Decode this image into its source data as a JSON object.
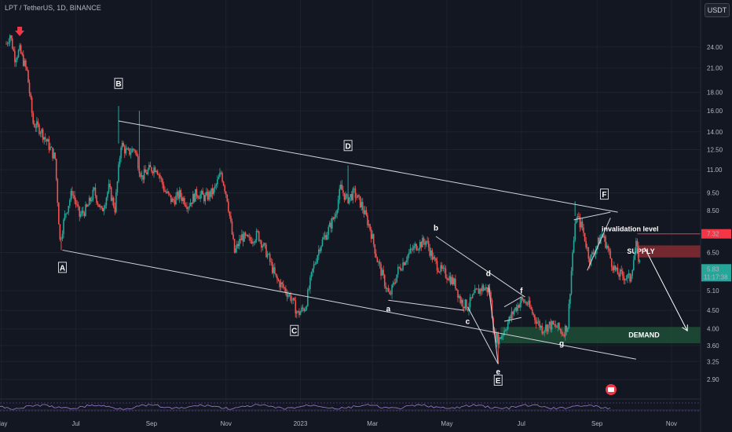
{
  "header": {
    "symbol": "LPT / TetherUS, 1D, BINANCE",
    "currency": "USDT"
  },
  "chart_data": {
    "type": "candlestick",
    "symbol": "LPT / TetherUS",
    "interval": "1D",
    "exchange": "BINANCE",
    "y_axis_scale": "log",
    "ylim": [
      2.6,
      29
    ],
    "xlim": [
      "2022-05-05",
      "2023-11-30"
    ],
    "y_ticks": [
      "24.00",
      "21.00",
      "18.00",
      "16.00",
      "14.00",
      "12.50",
      "11.00",
      "9.50",
      "8.50",
      "6.50",
      "5.10",
      "4.50",
      "4.00",
      "3.60",
      "3.25",
      "2.90"
    ],
    "x_ticks": [
      {
        "label": "May",
        "date": "2022-05-01"
      },
      {
        "label": "Jul",
        "date": "2022-07-01"
      },
      {
        "label": "Sep",
        "date": "2022-09-01"
      },
      {
        "label": "Nov",
        "date": "2022-11-01"
      },
      {
        "label": "2023",
        "date": "2023-01-01"
      },
      {
        "label": "Mar",
        "date": "2023-03-01"
      },
      {
        "label": "May",
        "date": "2023-05-01"
      },
      {
        "label": "Jul",
        "date": "2023-07-01"
      },
      {
        "label": "Sep",
        "date": "2023-09-01"
      },
      {
        "label": "Nov",
        "date": "2023-11-01"
      }
    ],
    "price_path": [
      [
        "2022-05-05",
        24.5
      ],
      [
        "2022-05-08",
        26.0
      ],
      [
        "2022-05-12",
        22.5
      ],
      [
        "2022-05-16",
        23.5
      ],
      [
        "2022-05-22",
        20.5
      ],
      [
        "2022-05-27",
        14.8
      ],
      [
        "2022-06-02",
        14.2
      ],
      [
        "2022-06-08",
        13.0
      ],
      [
        "2022-06-14",
        11.8
      ],
      [
        "2022-06-18",
        7.0
      ],
      [
        "2022-06-22",
        8.2
      ],
      [
        "2022-06-28",
        9.6
      ],
      [
        "2022-07-04",
        8.2
      ],
      [
        "2022-07-10",
        8.6
      ],
      [
        "2022-07-16",
        9.6
      ],
      [
        "2022-07-22",
        8.4
      ],
      [
        "2022-07-28",
        9.8
      ],
      [
        "2022-08-02",
        8.6
      ],
      [
        "2022-08-07",
        13.0
      ],
      [
        "2022-08-12",
        12.2
      ],
      [
        "2022-08-18",
        12.6
      ],
      [
        "2022-08-24",
        10.5
      ],
      [
        "2022-08-30",
        11.0
      ],
      [
        "2022-09-05",
        11.2
      ],
      [
        "2022-09-12",
        9.6
      ],
      [
        "2022-09-18",
        9.0
      ],
      [
        "2022-09-24",
        9.4
      ],
      [
        "2022-10-01",
        8.8
      ],
      [
        "2022-10-08",
        9.5
      ],
      [
        "2022-10-15",
        9.2
      ],
      [
        "2022-10-22",
        9.6
      ],
      [
        "2022-10-28",
        10.8
      ],
      [
        "2022-11-02",
        9.2
      ],
      [
        "2022-11-08",
        6.5
      ],
      [
        "2022-11-14",
        7.2
      ],
      [
        "2022-11-20",
        7.0
      ],
      [
        "2022-11-27",
        7.3
      ],
      [
        "2022-12-05",
        6.4
      ],
      [
        "2022-12-12",
        5.5
      ],
      [
        "2022-12-18",
        5.2
      ],
      [
        "2022-12-24",
        4.9
      ],
      [
        "2022-12-30",
        4.4
      ],
      [
        "2023-01-05",
        4.6
      ],
      [
        "2023-01-11",
        5.8
      ],
      [
        "2023-01-17",
        6.8
      ],
      [
        "2023-01-23",
        7.4
      ],
      [
        "2023-01-29",
        8.2
      ],
      [
        "2023-02-03",
        9.8
      ],
      [
        "2023-02-08",
        9.1
      ],
      [
        "2023-02-14",
        9.5
      ],
      [
        "2023-02-20",
        8.8
      ],
      [
        "2023-02-27",
        7.6
      ],
      [
        "2023-03-05",
        6.2
      ],
      [
        "2023-03-10",
        5.5
      ],
      [
        "2023-03-15",
        4.9
      ],
      [
        "2023-03-22",
        5.8
      ],
      [
        "2023-03-30",
        6.4
      ],
      [
        "2023-04-06",
        6.8
      ],
      [
        "2023-04-14",
        7.0
      ],
      [
        "2023-04-20",
        6.2
      ],
      [
        "2023-04-26",
        5.8
      ],
      [
        "2023-05-02",
        5.6
      ],
      [
        "2023-05-08",
        5.3
      ],
      [
        "2023-05-12",
        4.8
      ],
      [
        "2023-05-18",
        4.6
      ],
      [
        "2023-05-24",
        5.0
      ],
      [
        "2023-05-30",
        5.2
      ],
      [
        "2023-06-05",
        5.1
      ],
      [
        "2023-06-09",
        3.8
      ],
      [
        "2023-06-13",
        3.75
      ],
      [
        "2023-06-19",
        4.1
      ],
      [
        "2023-06-25",
        4.5
      ],
      [
        "2023-07-01",
        4.8
      ],
      [
        "2023-07-06",
        4.7
      ],
      [
        "2023-07-12",
        4.3
      ],
      [
        "2023-07-18",
        4.0
      ],
      [
        "2023-07-24",
        4.1
      ],
      [
        "2023-07-30",
        4.05
      ],
      [
        "2023-08-04",
        3.9
      ],
      [
        "2023-08-08",
        4.1
      ],
      [
        "2023-08-12",
        6.5
      ],
      [
        "2023-08-15",
        8.2
      ],
      [
        "2023-08-20",
        7.6
      ],
      [
        "2023-08-26",
        6.2
      ],
      [
        "2023-09-01",
        6.8
      ],
      [
        "2023-09-05",
        7.3
      ],
      [
        "2023-09-09",
        6.8
      ],
      [
        "2023-09-13",
        6.1
      ],
      [
        "2023-09-17",
        5.7
      ],
      [
        "2023-09-23",
        5.6
      ],
      [
        "2023-09-28",
        5.5
      ],
      [
        "2023-10-03",
        6.8
      ],
      [
        "2023-10-07",
        5.83
      ]
    ],
    "wicks": [
      [
        "2022-08-05",
        16.5
      ],
      [
        "2022-08-22",
        16.0
      ],
      [
        "2023-02-09",
        11.3
      ],
      [
        "2023-06-12",
        3.2
      ],
      [
        "2023-08-14",
        9.0
      ],
      [
        "2022-06-19",
        6.6
      ],
      [
        "2022-12-28",
        4.3
      ]
    ],
    "trendlines": [
      {
        "from": [
          "2022-08-05",
          15.0
        ],
        "to": [
          "2023-09-18",
          8.4
        ]
      },
      {
        "from": [
          "2022-06-20",
          6.6
        ],
        "to": [
          "2023-10-03",
          3.3
        ]
      },
      {
        "from": [
          "2023-03-14",
          4.8
        ],
        "to": [
          "2023-05-15",
          4.5
        ]
      },
      {
        "from": [
          "2023-04-22",
          7.2
        ],
        "to": [
          "2023-07-04",
          4.9
        ]
      },
      {
        "from": [
          "2023-06-04",
          5.3
        ],
        "to": [
          "2023-06-12",
          3.2
        ]
      },
      {
        "from": [
          "2023-05-18",
          4.6
        ],
        "to": [
          "2023-06-12",
          3.2
        ]
      },
      {
        "from": [
          "2023-06-17",
          4.6
        ],
        "to": [
          "2023-07-01",
          4.9
        ]
      },
      {
        "from": [
          "2023-06-17",
          4.2
        ],
        "to": [
          "2023-07-01",
          4.3
        ]
      },
      {
        "from": [
          "2023-08-13",
          8.0
        ],
        "to": [
          "2023-09-12",
          8.4
        ]
      },
      {
        "from": [
          "2023-08-24",
          5.8
        ],
        "to": [
          "2023-09-12",
          8.1
        ]
      }
    ],
    "wave_labels": [
      {
        "text": "A",
        "date": "2022-06-20",
        "price": 5.9,
        "boxed": true
      },
      {
        "text": "B",
        "date": "2022-08-05",
        "price": 19.0,
        "boxed": true
      },
      {
        "text": "C",
        "date": "2022-12-27",
        "price": 3.95,
        "boxed": true
      },
      {
        "text": "D",
        "date": "2023-02-09",
        "price": 12.8,
        "boxed": true
      },
      {
        "text": "E",
        "date": "2023-06-12",
        "price": 2.88,
        "boxed": true
      },
      {
        "text": "F",
        "date": "2023-09-07",
        "price": 9.4,
        "boxed": true
      },
      {
        "text": "a",
        "date": "2023-03-14",
        "price": 4.55,
        "boxed": false
      },
      {
        "text": "b",
        "date": "2023-04-22",
        "price": 7.6,
        "boxed": false
      },
      {
        "text": "c",
        "date": "2023-05-18",
        "price": 4.2,
        "boxed": false
      },
      {
        "text": "d",
        "date": "2023-06-04",
        "price": 5.7,
        "boxed": false
      },
      {
        "text": "e",
        "date": "2023-06-12",
        "price": 3.05,
        "boxed": false
      },
      {
        "text": "f",
        "date": "2023-07-01",
        "price": 5.1,
        "boxed": false
      },
      {
        "text": "g",
        "date": "2023-08-03",
        "price": 3.65,
        "boxed": false
      }
    ],
    "invalidation": {
      "label": "invalidation level",
      "price": 7.32,
      "price_label": "7.32"
    },
    "supply_zone": {
      "label": "SUPPLY",
      "from_date": "2023-10-04",
      "top": 6.8,
      "bottom": 6.3
    },
    "demand_zone": {
      "label": "DEMAND",
      "from_date": "2023-06-14",
      "top": 4.05,
      "bottom": 3.65
    },
    "projection": {
      "from": [
        "2023-10-10",
        6.7
      ],
      "to": [
        "2023-11-14",
        3.95
      ]
    },
    "current_price": {
      "value": 5.83,
      "label": "5.83",
      "countdown": "11:17:38"
    },
    "signal_arrow_date": "2022-05-16",
    "colors": {
      "up": "#26a69a",
      "down": "#ef5350",
      "background": "#131722",
      "supply": "#7a2930",
      "demand": "#1e4d36",
      "invalidation": "#f23645"
    }
  }
}
